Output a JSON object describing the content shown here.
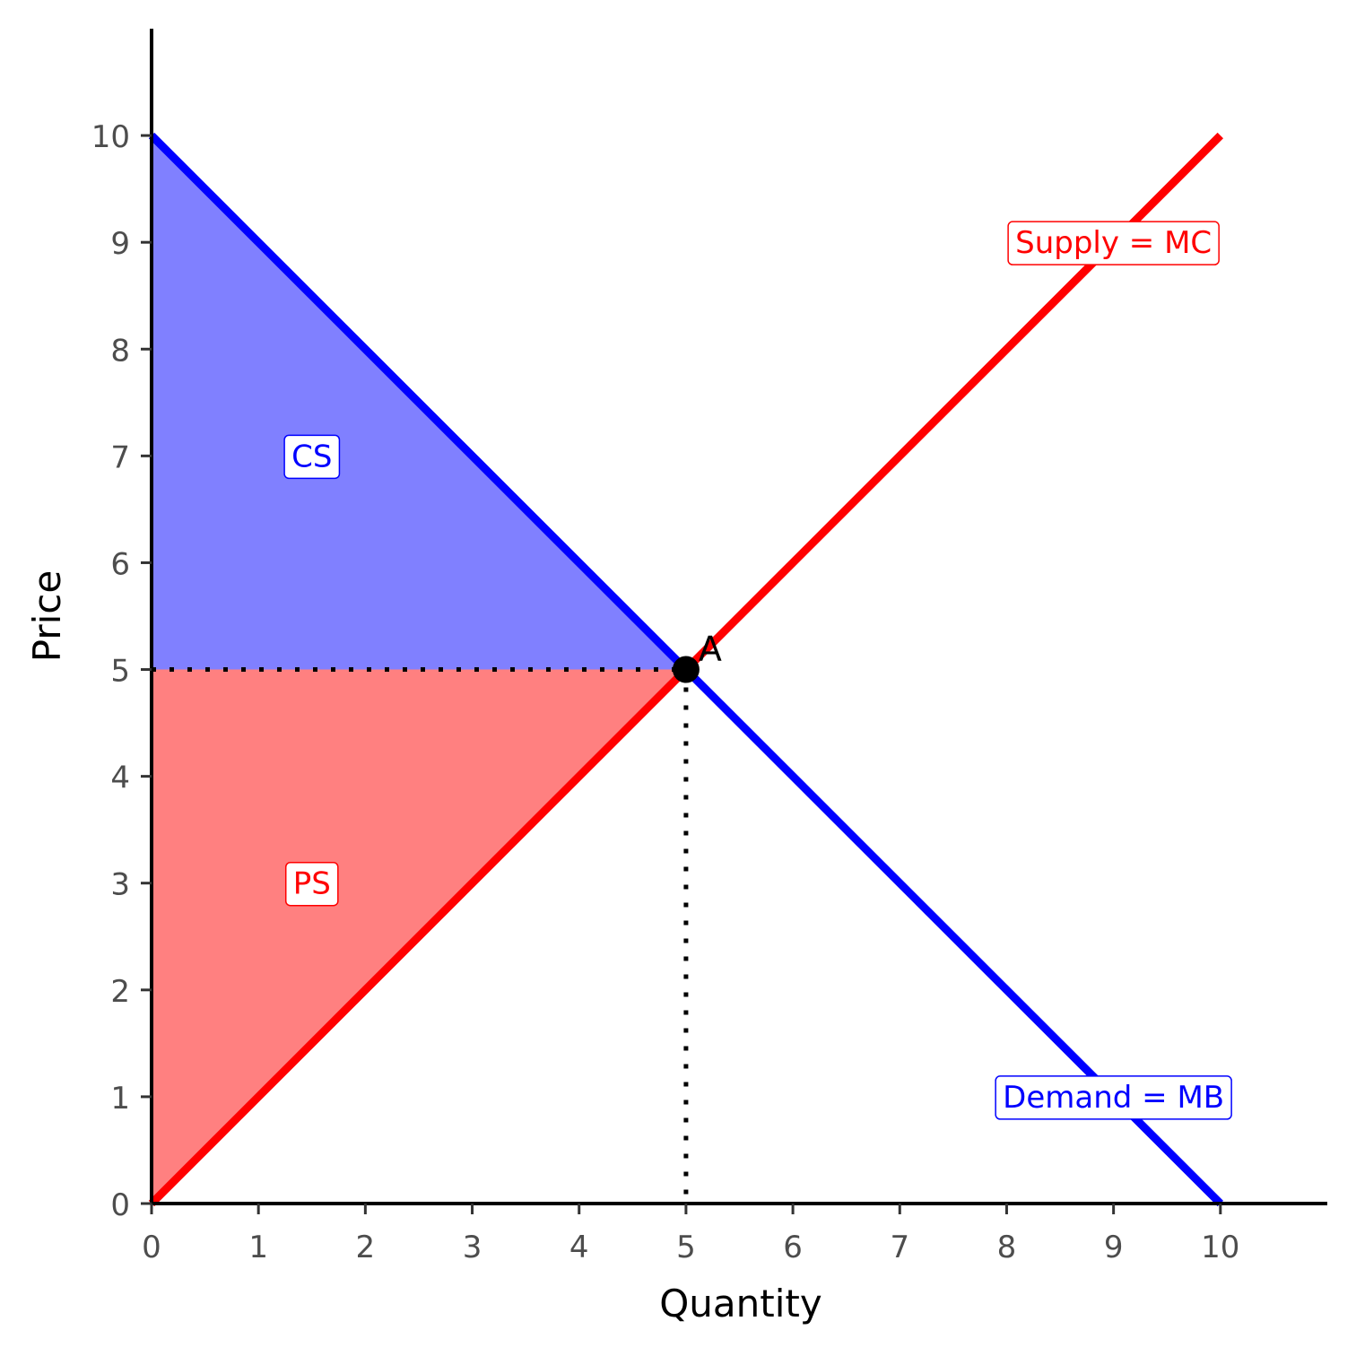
{
  "chart_data": {
    "type": "line",
    "xlabel": "Quantity",
    "ylabel": "Price",
    "xlim": [
      0,
      11
    ],
    "ylim": [
      0,
      11
    ],
    "x_ticks": [
      0,
      1,
      2,
      3,
      4,
      5,
      6,
      7,
      8,
      9,
      10
    ],
    "y_ticks": [
      0,
      1,
      2,
      3,
      4,
      5,
      6,
      7,
      8,
      9,
      10
    ],
    "grid": false,
    "series": [
      {
        "label": "Supply = MC",
        "color": "#ff0000",
        "points": [
          [
            0,
            0
          ],
          [
            10,
            10
          ]
        ],
        "label_at": [
          9,
          9
        ]
      },
      {
        "label": "Demand = MB",
        "color": "#0000ff",
        "points": [
          [
            0,
            10
          ],
          [
            10,
            0
          ]
        ],
        "label_at": [
          9,
          1
        ]
      }
    ],
    "regions": [
      {
        "label": "CS",
        "color": "#0000ff",
        "fill": "#8080ff",
        "polygon": [
          [
            0,
            10
          ],
          [
            5,
            5
          ],
          [
            0,
            5
          ]
        ],
        "label_at": [
          1.5,
          7
        ]
      },
      {
        "label": "PS",
        "color": "#ff0000",
        "fill": "#ff8080",
        "polygon": [
          [
            0,
            0
          ],
          [
            5,
            5
          ],
          [
            0,
            5
          ]
        ],
        "label_at": [
          1.5,
          3
        ]
      }
    ],
    "equilibrium": {
      "label": "A",
      "x": 5,
      "y": 5
    }
  }
}
